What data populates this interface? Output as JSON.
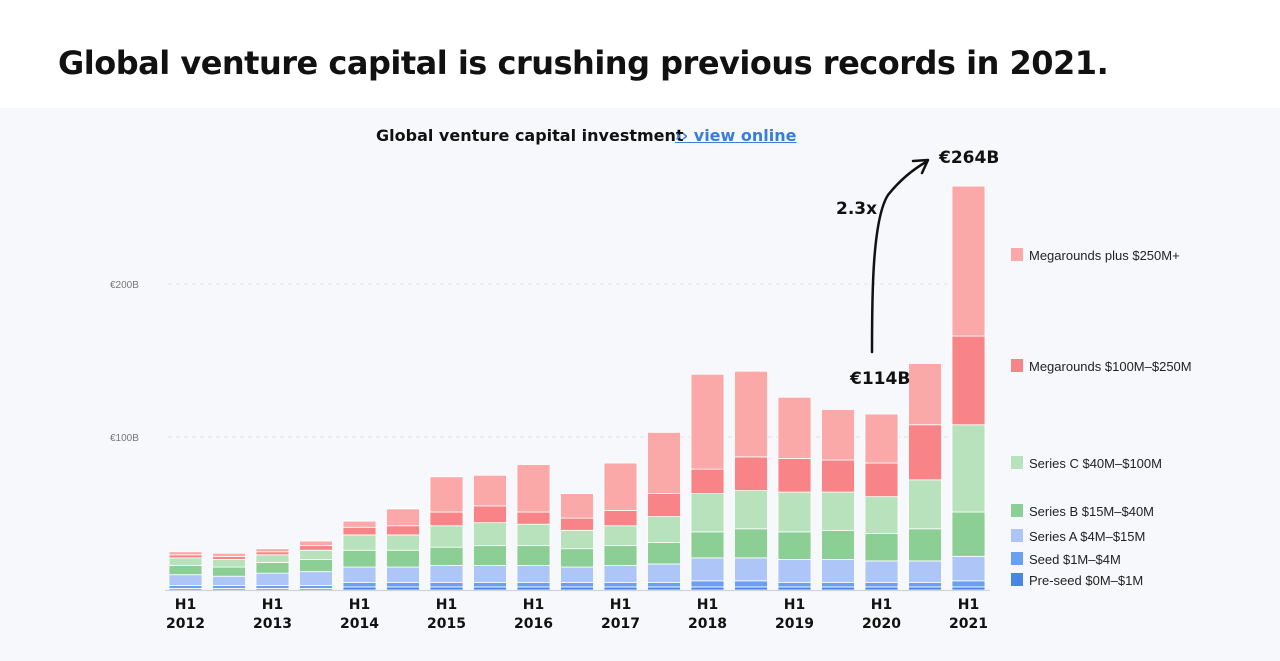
{
  "headline": "Global venture capital is crushing previous records in 2021.",
  "chart_header": {
    "title": "Global venture capital investment",
    "link_label": "›› view online"
  },
  "chart_data": {
    "type": "bar",
    "stacked": true,
    "title": "Global venture capital investment",
    "categories": [
      "H1 2012",
      "H2 2012",
      "H1 2013",
      "H2 2013",
      "H1 2014",
      "H2 2014",
      "H1 2015",
      "H2 2015",
      "H1 2016",
      "H2 2016",
      "H1 2017",
      "H2 2017",
      "H1 2018",
      "H2 2018",
      "H1 2019",
      "H2 2019",
      "H1 2020",
      "H2 2020",
      "H1 2021"
    ],
    "x_tick_labels": [
      {
        "index": 0,
        "line1": "H1",
        "line2": "2012"
      },
      {
        "index": 2,
        "line1": "H1",
        "line2": "2013"
      },
      {
        "index": 4,
        "line1": "H1",
        "line2": "2014"
      },
      {
        "index": 6,
        "line1": "H1",
        "line2": "2015"
      },
      {
        "index": 8,
        "line1": "H1",
        "line2": "2016"
      },
      {
        "index": 10,
        "line1": "H1",
        "line2": "2017"
      },
      {
        "index": 12,
        "line1": "H1",
        "line2": "2018"
      },
      {
        "index": 14,
        "line1": "H1",
        "line2": "2019"
      },
      {
        "index": 16,
        "line1": "H1",
        "line2": "2020"
      },
      {
        "index": 18,
        "line1": "H1",
        "line2": "2021"
      }
    ],
    "ylim": [
      0,
      264
    ],
    "y_ticks": [
      {
        "value": 100,
        "label": "€100B"
      },
      {
        "value": 200,
        "label": "€200B"
      }
    ],
    "series": [
      {
        "name": "Pre-seed $0M–$1M",
        "color": "#4a86e8",
        "values": [
          1,
          1,
          1,
          1,
          2,
          2,
          2,
          2,
          2,
          2,
          2,
          2,
          2,
          2,
          2,
          2,
          2,
          2,
          2
        ]
      },
      {
        "name": "Seed $1M–$4M",
        "color": "#6aa0f0",
        "values": [
          2,
          2,
          2,
          2,
          3,
          3,
          3,
          3,
          3,
          3,
          3,
          3,
          4,
          4,
          3,
          3,
          3,
          3,
          4
        ]
      },
      {
        "name": "Series A $4M–$15M",
        "color": "#aec6f7",
        "values": [
          7,
          6,
          8,
          9,
          10,
          10,
          11,
          11,
          11,
          10,
          11,
          12,
          15,
          15,
          15,
          15,
          14,
          14,
          16
        ]
      },
      {
        "name": "Series B $15M–$40M",
        "color": "#8ccf94",
        "values": [
          6,
          6,
          7,
          8,
          11,
          11,
          12,
          13,
          13,
          12,
          13,
          14,
          17,
          19,
          18,
          19,
          18,
          21,
          29
        ]
      },
      {
        "name": "Series C $40M–$100M",
        "color": "#b7e2bb",
        "values": [
          5,
          5,
          5,
          6,
          10,
          10,
          14,
          15,
          14,
          12,
          13,
          17,
          25,
          25,
          26,
          25,
          24,
          32,
          57
        ]
      },
      {
        "name": "Megarounds $100M–$250M",
        "color": "#f88487",
        "values": [
          2,
          2,
          2,
          3,
          5,
          6,
          9,
          11,
          8,
          8,
          10,
          15,
          16,
          22,
          22,
          21,
          22,
          36,
          58
        ]
      },
      {
        "name": "Megarounds plus $250M+",
        "color": "#fba8a9",
        "values": [
          2,
          2,
          2,
          3,
          4,
          11,
          23,
          20,
          31,
          16,
          31,
          40,
          62,
          56,
          40,
          33,
          32,
          40,
          98
        ]
      }
    ],
    "legend": {
      "placement": "right",
      "order_top_to_bottom": [
        "Megarounds plus $250M+",
        "Megarounds $100M–$250M",
        "Series C $40M–$100M",
        "Series B $15M–$40M",
        "Series A $4M–$15M",
        "Seed $1M–$4M",
        "Pre-seed $0M–$1M"
      ]
    },
    "grid": true,
    "annotations": {
      "start_value": "€114B",
      "end_value": "€264B",
      "growth": "2.3x"
    }
  }
}
